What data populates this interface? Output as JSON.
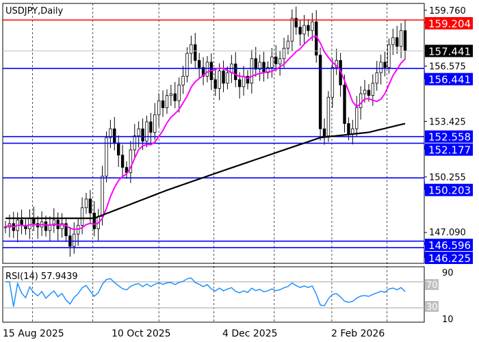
{
  "chart_data": {
    "type": "candlestick",
    "title": "USDJPY,Daily",
    "ylim": [
      145.3,
      160.3
    ],
    "y_ticks": [
      "159.760",
      "156.575",
      "153.425",
      "150.255",
      "147.090"
    ],
    "x_labels": [
      "15 Aug 2025",
      "10 Oct 2025",
      "4 Dec 2025",
      "2 Feb 2026"
    ],
    "close": [
      147.4,
      147.6,
      147.2,
      147.8,
      147.5,
      147.3,
      147.9,
      147.6,
      147.4,
      147.7,
      147.2,
      147.5,
      147.8,
      147.3,
      147.6,
      146.9,
      146.3,
      147.0,
      147.5,
      148.5,
      149.0,
      148.2,
      147.3,
      148.0,
      150.3,
      152.5,
      153.0,
      152.2,
      151.5,
      150.8,
      150.5,
      151.8,
      152.6,
      153.0,
      152.3,
      153.4,
      152.8,
      153.8,
      154.6,
      154.2,
      154.9,
      155.0,
      154.6,
      155.5,
      156.0,
      157.3,
      157.8,
      156.9,
      156.5,
      156.0,
      156.8,
      155.8,
      155.3,
      156.3,
      155.6,
      156.2,
      156.7,
      155.8,
      155.4,
      156.0,
      155.6,
      157.0,
      156.4,
      156.8,
      156.2,
      156.5,
      157.1,
      156.7,
      157.0,
      157.6,
      158.0,
      159.3,
      158.8,
      158.4,
      158.9,
      158.6,
      159.1,
      157.2,
      153.0,
      152.6,
      154.8,
      156.5,
      156.9,
      155.5,
      153.3,
      152.7,
      153.0,
      154.2,
      155.0,
      155.2,
      154.9,
      155.6,
      156.2,
      156.8,
      156.5,
      157.8,
      158.2,
      157.7,
      158.6,
      157.441
    ],
    "slow_ma_anchors": [
      [
        0,
        147.9
      ],
      [
        22,
        147.9
      ],
      [
        40,
        149.5
      ],
      [
        55,
        150.7
      ],
      [
        78,
        152.5
      ],
      [
        90,
        152.8
      ],
      [
        99,
        153.3
      ]
    ],
    "fast_ma_color": "#ff00ff",
    "slow_ma_color": "#000000",
    "levels": [
      {
        "value": 159.204,
        "label": "159.204",
        "color": "#ff0000"
      },
      {
        "value": 157.441,
        "label": "157.441",
        "color": "#000000",
        "line": "#c0c0c0"
      },
      {
        "value": 156.441,
        "label": "156.441",
        "color": "#0000ff"
      },
      {
        "value": 152.558,
        "label": "152.558",
        "color": "#0000ff"
      },
      {
        "value": 152.177,
        "label": "152.177",
        "color": "#0000ff"
      },
      {
        "value": 150.203,
        "label": "150.203",
        "color": "#0000ff"
      },
      {
        "value": 146.596,
        "label": "146.596",
        "color": "#0000ff"
      },
      {
        "value": 146.225,
        "label": "146.225",
        "color": "#0000ff"
      }
    ],
    "rsi": {
      "label": "RSI(14) 57.9439",
      "period": 14,
      "levels": [
        "70",
        "30"
      ],
      "ticks": [
        "90",
        "10"
      ],
      "color": "#1e90ff"
    }
  }
}
